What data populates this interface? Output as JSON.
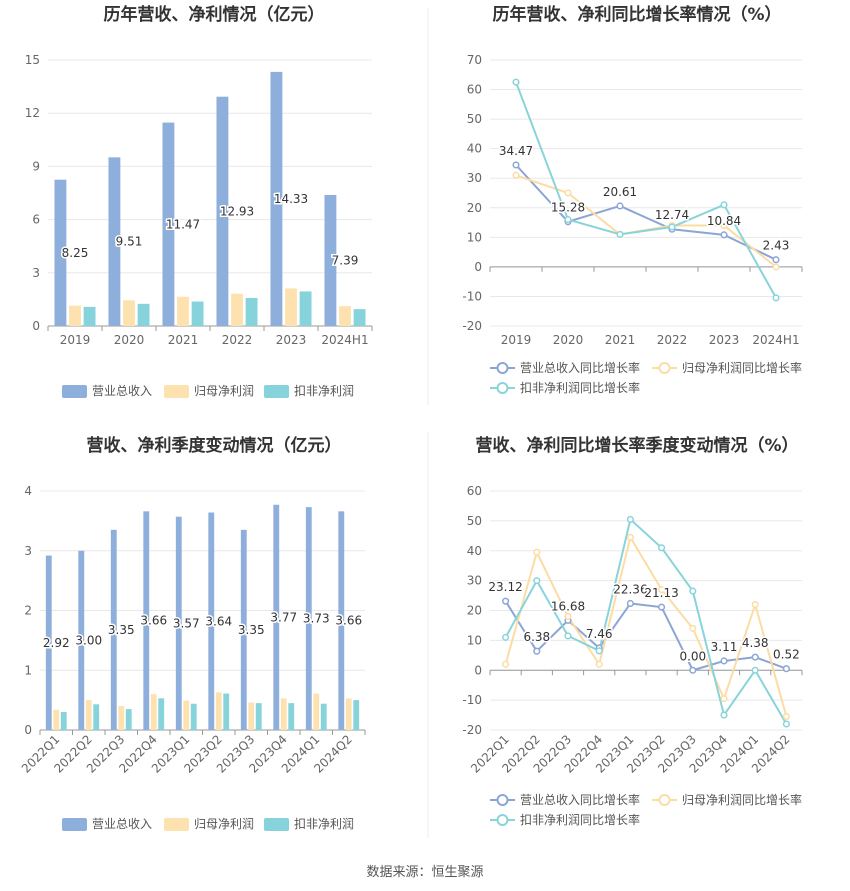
{
  "footer": {
    "source": "数据来源：恒生聚源"
  },
  "colors": {
    "revenue": "#8eaedb",
    "net_profit": "#fde2b0",
    "deducted_profit": "#86d3dc",
    "rev_growth": "#8ba5d6",
    "np_growth": "#fcdca3",
    "dp_growth": "#88d4da"
  },
  "chart_data": [
    {
      "type": "bar",
      "title": "历年营收、净利情况（亿元）",
      "categories": [
        "2019",
        "2020",
        "2021",
        "2022",
        "2023",
        "2024H1"
      ],
      "ylim": [
        0,
        15
      ],
      "yticks": [
        "0",
        "3",
        "6",
        "9",
        "12",
        "15"
      ],
      "series": [
        {
          "name": "营业总收入",
          "values": [
            8.25,
            9.51,
            11.47,
            12.93,
            14.33,
            7.39
          ],
          "labels": [
            "8.25",
            "9.51",
            "11.47",
            "12.93",
            "14.33",
            "7.39"
          ]
        },
        {
          "name": "归母净利润",
          "values": [
            1.15,
            1.45,
            1.65,
            1.82,
            2.12,
            1.12
          ]
        },
        {
          "name": "扣非净利润",
          "values": [
            1.08,
            1.25,
            1.38,
            1.58,
            1.95,
            0.95
          ]
        }
      ],
      "legend": "bottom"
    },
    {
      "type": "line",
      "title": "历年营收、净利同比增长率情况（%）",
      "categories": [
        "2019",
        "2020",
        "2021",
        "2022",
        "2023",
        "2024H1"
      ],
      "ylim": [
        -20,
        70
      ],
      "yticks": [
        "-20",
        "-10",
        "0",
        "10",
        "20",
        "30",
        "40",
        "50",
        "60",
        "70"
      ],
      "series": [
        {
          "name": "营业总收入同比增长率",
          "values": [
            34.47,
            15.28,
            20.61,
            12.74,
            10.84,
            2.43
          ],
          "labels": [
            "34.47",
            "15.28",
            "20.61",
            "12.74",
            "10.84",
            "2.43"
          ]
        },
        {
          "name": "归母净利润同比增长率",
          "values": [
            31,
            25,
            11,
            14,
            14,
            0
          ]
        },
        {
          "name": "扣非净利润同比增长率",
          "values": [
            62.5,
            16,
            11,
            13.5,
            21,
            -10.5
          ]
        }
      ],
      "legend": "bottom"
    },
    {
      "type": "bar",
      "title": "营收、净利季度变动情况（亿元）",
      "categories": [
        "2022Q1",
        "2022Q2",
        "2022Q3",
        "2022Q4",
        "2023Q1",
        "2023Q2",
        "2023Q3",
        "2023Q4",
        "2024Q1",
        "2024Q2"
      ],
      "ylim": [
        0,
        4
      ],
      "yticks": [
        "0",
        "1",
        "2",
        "3",
        "4"
      ],
      "series": [
        {
          "name": "营业总收入",
          "values": [
            2.92,
            3.0,
            3.35,
            3.66,
            3.57,
            3.64,
            3.35,
            3.77,
            3.73,
            3.66
          ],
          "labels": [
            "2.92",
            "3.00",
            "3.35",
            "3.66",
            "3.57",
            "3.64",
            "3.35",
            "3.77",
            "3.73",
            "3.66"
          ]
        },
        {
          "name": "归母净利润",
          "values": [
            0.34,
            0.5,
            0.4,
            0.6,
            0.49,
            0.63,
            0.46,
            0.53,
            0.61,
            0.53
          ]
        },
        {
          "name": "扣非净利润",
          "values": [
            0.3,
            0.43,
            0.35,
            0.53,
            0.44,
            0.61,
            0.45,
            0.45,
            0.44,
            0.5
          ]
        }
      ],
      "legend": "bottom"
    },
    {
      "type": "line",
      "title": "营收、净利同比增长率季度变动情况（%）",
      "categories": [
        "2022Q1",
        "2022Q2",
        "2022Q3",
        "2022Q4",
        "2023Q1",
        "2023Q2",
        "2023Q3",
        "2023Q4",
        "2024Q1",
        "2024Q2"
      ],
      "ylim": [
        -20,
        60
      ],
      "yticks": [
        "-20",
        "-10",
        "0",
        "10",
        "20",
        "30",
        "40",
        "50",
        "60"
      ],
      "series": [
        {
          "name": "营业总收入同比增长率",
          "values": [
            23.12,
            6.38,
            16.68,
            7.46,
            22.36,
            21.13,
            0.0,
            3.11,
            4.38,
            0.52
          ],
          "labels": [
            "23.12",
            "6.38",
            "16.68",
            "7.46",
            "22.36",
            "21.13",
            "0.00",
            "3.11",
            "4.38",
            "0.52"
          ]
        },
        {
          "name": "归母净利润同比增长率",
          "values": [
            2,
            39.5,
            18,
            2,
            44.5,
            27,
            14,
            -9.5,
            22,
            -15.5
          ]
        },
        {
          "name": "扣非净利润同比增长率",
          "values": [
            11,
            30,
            11.5,
            6.5,
            50.5,
            41,
            26.5,
            -15,
            0,
            -18
          ]
        }
      ],
      "legend": "bottom"
    }
  ]
}
